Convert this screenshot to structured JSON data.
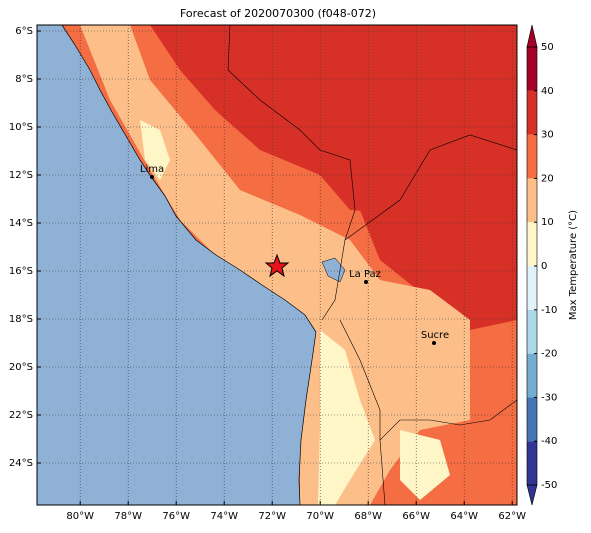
{
  "chart_data": {
    "type": "map",
    "title": "Forecast of 2020070300 (f048-072)",
    "xlim": [
      -81.8,
      -61.8
    ],
    "ylim": [
      -25.75,
      -5.75
    ],
    "xticks": [
      {
        "value": -80,
        "label": "80°W"
      },
      {
        "value": -78,
        "label": "78°W"
      },
      {
        "value": -76,
        "label": "76°W"
      },
      {
        "value": -74,
        "label": "74°W"
      },
      {
        "value": -72,
        "label": "72°W"
      },
      {
        "value": -70,
        "label": "70°W"
      },
      {
        "value": -68,
        "label": "68°W"
      },
      {
        "value": -66,
        "label": "66°W"
      },
      {
        "value": -64,
        "label": "64°W"
      },
      {
        "value": -62,
        "label": "62°W"
      }
    ],
    "yticks": [
      {
        "value": -6,
        "label": "6°S"
      },
      {
        "value": -8,
        "label": "8°S"
      },
      {
        "value": -10,
        "label": "10°S"
      },
      {
        "value": -12,
        "label": "12°S"
      },
      {
        "value": -14,
        "label": "14°S"
      },
      {
        "value": -16,
        "label": "16°S"
      },
      {
        "value": -18,
        "label": "18°S"
      },
      {
        "value": -20,
        "label": "20°S"
      },
      {
        "value": -22,
        "label": "22°S"
      },
      {
        "value": -24,
        "label": "24°S"
      }
    ],
    "grid": true,
    "cities": [
      "Lima",
      "La Paz",
      "Sucre"
    ],
    "colorbar": {
      "label": "Max Temperature (°C)",
      "clim": [
        -50,
        50
      ],
      "ticks": [
        -50,
        -40,
        -30,
        -20,
        -10,
        0,
        10,
        20,
        30,
        40,
        50
      ],
      "colors": [
        "#313695",
        "#4575b4",
        "#74add1",
        "#abd9e9",
        "#e0f3f8",
        "#fef6c6",
        "#fdbf8a",
        "#f46d43",
        "#d73027",
        "#a50026"
      ]
    }
  }
}
